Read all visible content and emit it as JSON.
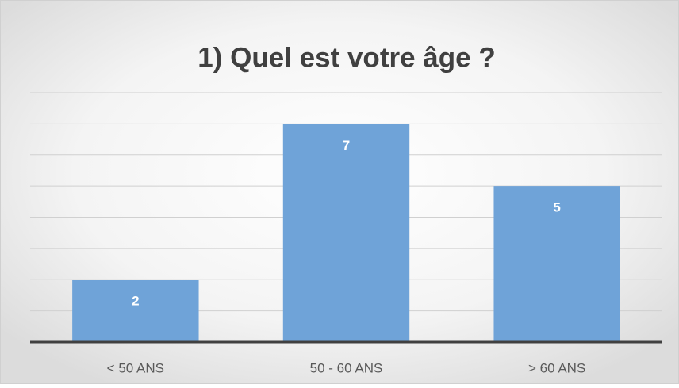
{
  "chart_data": {
    "type": "bar",
    "title": "1) Quel est votre âge ?",
    "categories": [
      "< 50 ANS",
      "50 - 60 ANS",
      "> 60 ANS"
    ],
    "values": [
      2,
      7,
      5
    ],
    "color": "#6fa3d8",
    "ylim": [
      0,
      8
    ],
    "yticks": [
      0,
      1,
      2,
      3,
      4,
      5,
      6,
      7,
      8
    ],
    "grid": true,
    "data_labels": true
  }
}
